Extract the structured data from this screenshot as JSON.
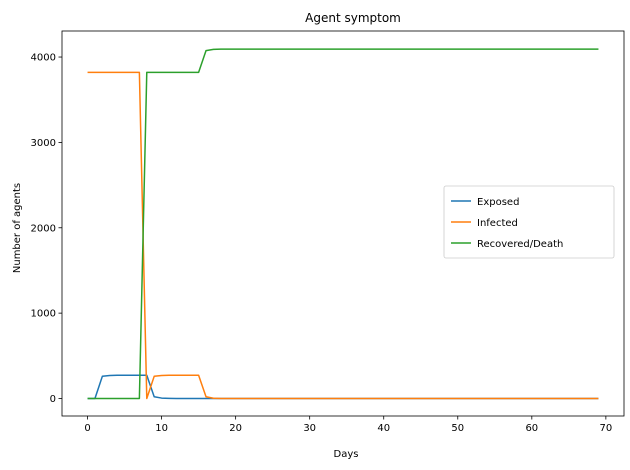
{
  "chart_data": {
    "type": "line",
    "title": "Agent symptom",
    "xlabel": "Days",
    "ylabel": "Number of agents",
    "xlim": [
      -3.45,
      72.45
    ],
    "ylim": [
      -205,
      4305
    ],
    "xticks": [
      0,
      10,
      20,
      30,
      40,
      50,
      60,
      70
    ],
    "yticks": [
      0,
      1000,
      2000,
      3000,
      4000
    ],
    "grid": false,
    "legend_position": "center-right",
    "series": [
      {
        "name": "Exposed",
        "color": "#1f77b4",
        "points": [
          [
            0,
            0
          ],
          [
            1,
            0
          ],
          [
            2,
            260
          ],
          [
            3,
            270
          ],
          [
            4,
            272
          ],
          [
            5,
            272
          ],
          [
            6,
            272
          ],
          [
            7,
            272
          ],
          [
            8,
            272
          ],
          [
            9,
            20
          ],
          [
            10,
            5
          ],
          [
            11,
            2
          ],
          [
            12,
            0
          ],
          [
            15,
            0
          ],
          [
            16,
            0
          ],
          [
            69,
            0
          ]
        ]
      },
      {
        "name": "Infected",
        "color": "#ff7f0e",
        "points": [
          [
            0,
            3820
          ],
          [
            7,
            3820
          ],
          [
            8,
            0
          ],
          [
            9,
            260
          ],
          [
            10,
            270
          ],
          [
            11,
            272
          ],
          [
            12,
            272
          ],
          [
            13,
            272
          ],
          [
            14,
            272
          ],
          [
            15,
            272
          ],
          [
            16,
            20
          ],
          [
            17,
            3
          ],
          [
            18,
            0
          ],
          [
            69,
            0
          ]
        ]
      },
      {
        "name": "Recovered/Death",
        "color": "#2ca02c",
        "points": [
          [
            0,
            0
          ],
          [
            7,
            0
          ],
          [
            8,
            3820
          ],
          [
            15,
            3820
          ],
          [
            16,
            4075
          ],
          [
            17,
            4090
          ],
          [
            18,
            4092
          ],
          [
            69,
            4092
          ]
        ]
      }
    ]
  }
}
